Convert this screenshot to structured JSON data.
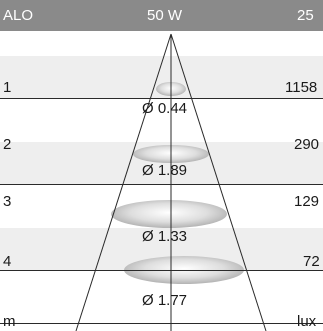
{
  "header": {
    "left_label": "ALO",
    "center_label": "50 W",
    "right_label": "25"
  },
  "rows": [
    {
      "distance": "1",
      "lux": "1158",
      "diameter": "Ø 0.44"
    },
    {
      "distance": "2",
      "lux": "290",
      "diameter": "Ø 1.89"
    },
    {
      "distance": "3",
      "lux": "129",
      "diameter": "Ø 1.33"
    },
    {
      "distance": "4",
      "lux": "72",
      "diameter": "Ø 1.77"
    }
  ],
  "footer": {
    "unit_left": "m",
    "unit_right": "lux"
  },
  "colors": {
    "header_bg": "#8a8a8a",
    "band_bg": "#eeeeee",
    "line": "#2a2a2a"
  }
}
